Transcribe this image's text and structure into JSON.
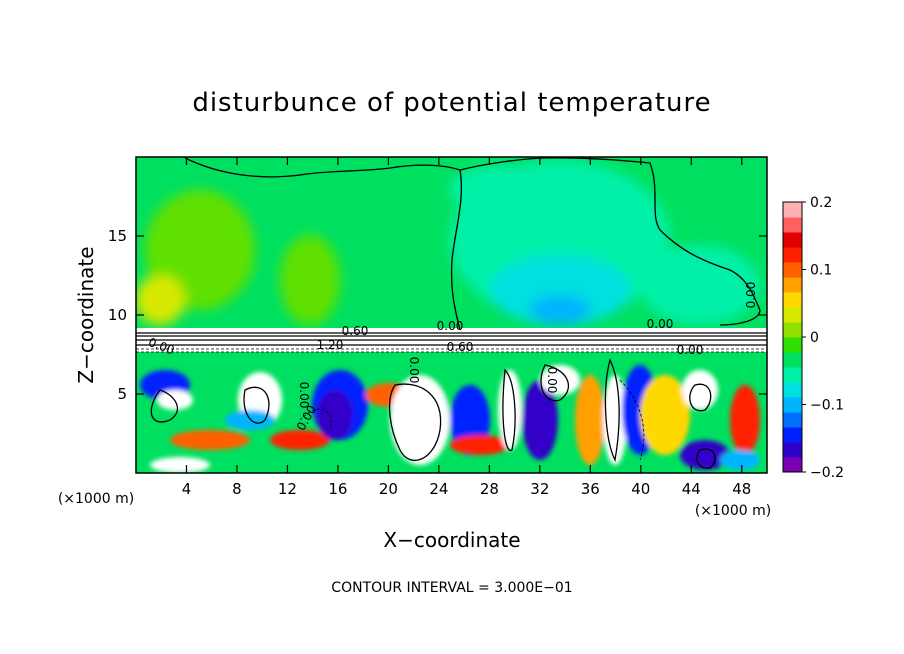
{
  "chart_data": {
    "type": "heatmap",
    "title": "disturbunce of potential temperature",
    "xlabel": "X−coordinate",
    "ylabel": "Z−coordinate",
    "x_unit_left": "(×1000 m)",
    "x_unit_right": "(×1000 m)",
    "xlim": [
      0,
      50
    ],
    "ylim": [
      0,
      20
    ],
    "x_ticks": [
      "4",
      "8",
      "12",
      "16",
      "20",
      "24",
      "28",
      "32",
      "36",
      "40",
      "44",
      "48"
    ],
    "y_ticks": [
      "5",
      "10",
      "15"
    ],
    "colorbar": {
      "range": [
        -0.2,
        0.2
      ],
      "tick_labels": [
        "0.2",
        "0.1",
        "0",
        "−0.1",
        "−0.2"
      ],
      "colors": [
        "#7a00b4",
        "#3000c8",
        "#0020ff",
        "#0070ff",
        "#00b4ff",
        "#00e0e0",
        "#00f0a8",
        "#00e060",
        "#30e000",
        "#90e000",
        "#d8e800",
        "#ffd800",
        "#ffa000",
        "#ff6000",
        "#ff2000",
        "#e00000",
        "#ff6060",
        "#ffb0b0"
      ]
    },
    "contour_labels": [
      "0.60",
      "1.20",
      "0.60",
      "0.00",
      "0.00",
      "0.00",
      "0.00",
      "0.00",
      "0.00",
      "0.00",
      "0.00",
      "0.00"
    ],
    "contour_interval_label": "CONTOUR INTERVAL = 3.000E−01"
  }
}
